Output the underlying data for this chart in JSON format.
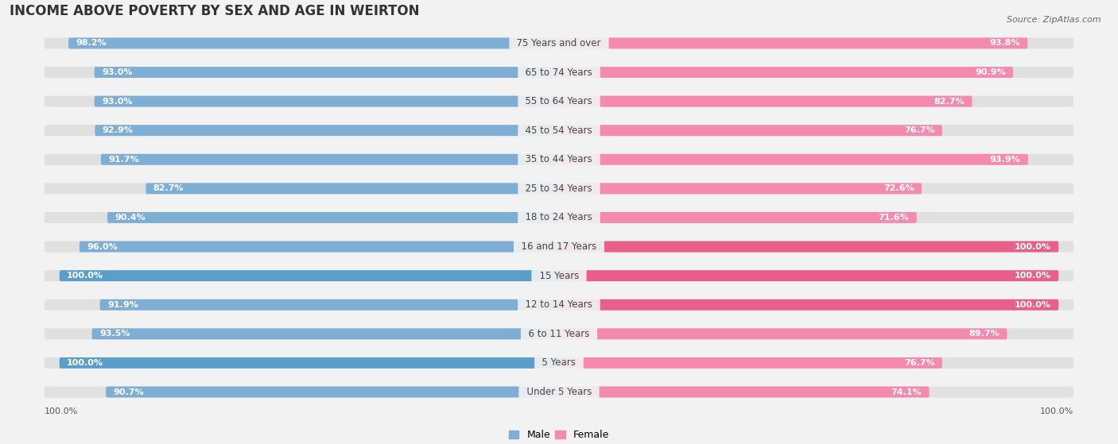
{
  "title": "INCOME ABOVE POVERTY BY SEX AND AGE IN WEIRTON",
  "source": "Source: ZipAtlas.com",
  "categories": [
    "Under 5 Years",
    "5 Years",
    "6 to 11 Years",
    "12 to 14 Years",
    "15 Years",
    "16 and 17 Years",
    "18 to 24 Years",
    "25 to 34 Years",
    "35 to 44 Years",
    "45 to 54 Years",
    "55 to 64 Years",
    "65 to 74 Years",
    "75 Years and over"
  ],
  "male_values": [
    90.7,
    100.0,
    93.5,
    91.9,
    100.0,
    96.0,
    90.4,
    82.7,
    91.7,
    92.9,
    93.0,
    93.0,
    98.2
  ],
  "female_values": [
    74.1,
    76.7,
    89.7,
    100.0,
    100.0,
    100.0,
    71.6,
    72.6,
    93.9,
    76.7,
    82.7,
    90.9,
    93.8
  ],
  "male_color": "#7eaed3",
  "male_color_full": "#5b9ec9",
  "female_color": "#f48aae",
  "female_color_full": "#e8608a",
  "bg_color": "#f2f2f2",
  "bar_bg_color": "#e0e0e0",
  "title_fontsize": 12,
  "label_fontsize": 8.5,
  "value_fontsize": 8.0,
  "bar_height": 0.38,
  "max_bar": 103.0,
  "rounding_size": 0.19
}
